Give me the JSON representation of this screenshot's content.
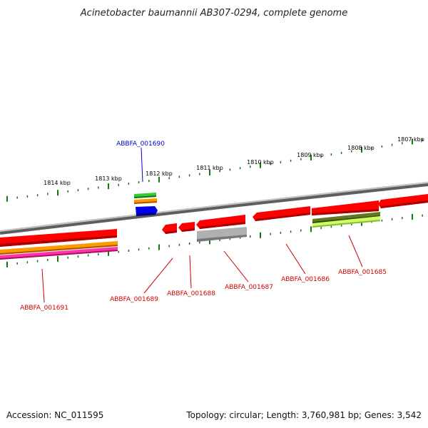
{
  "title": "Acinetobacter baumannii AB307-0294, complete genome",
  "footer": {
    "accession": "Accession: NC_011595",
    "summary": "Topology: circular; Length: 3,760,981 bp; Genes: 3,542"
  },
  "ticks": [
    {
      "label": "1814 kbp"
    },
    {
      "label": "1813 kbp"
    },
    {
      "label": "1812 kbp"
    },
    {
      "label": "1811 kbp"
    },
    {
      "label": "1810 kbp"
    },
    {
      "label": "1809 kbp"
    },
    {
      "label": "1808 kbp"
    },
    {
      "label": "1807 kbp"
    }
  ],
  "gene_labels": [
    {
      "name": "ABBFA_001690",
      "color": "#0000cc"
    },
    {
      "name": "ABBFA_001691",
      "color": "#cc0000"
    },
    {
      "name": "ABBFA_001689",
      "color": "#cc0000"
    },
    {
      "name": "ABBFA_001688",
      "color": "#cc0000"
    },
    {
      "name": "ABBFA_001687",
      "color": "#cc0000"
    },
    {
      "name": "ABBFA_001686",
      "color": "#cc0000"
    },
    {
      "name": "ABBFA_001685",
      "color": "#cc0000"
    }
  ],
  "colors": {
    "backbone": "#808080",
    "gene_red": "#ff0000",
    "gene_gray": "#b0b0b0",
    "gene_blue": "#0000ee",
    "gene_green": "#33cc33",
    "gene_orange": "#ff9900",
    "gene_magenta": "#ff33aa",
    "gene_olive": "#667722",
    "gene_lime": "#ccff66",
    "tick_green": "#117711"
  }
}
